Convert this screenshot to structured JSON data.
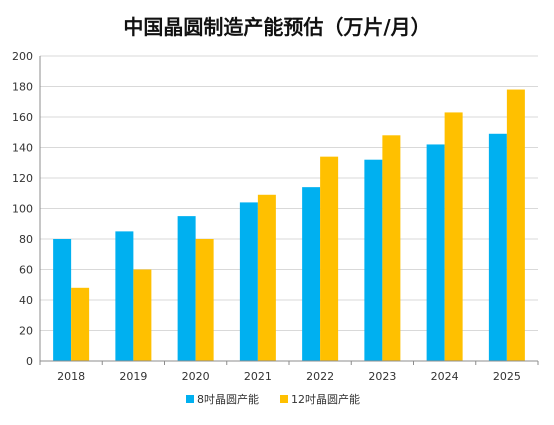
{
  "chart_data": {
    "type": "bar",
    "title": "中国晶圆制造产能预估（万片/月）",
    "xlabel": "",
    "ylabel": "",
    "categories": [
      "2018",
      "2019",
      "2020",
      "2021",
      "2022",
      "2023",
      "2024",
      "2025"
    ],
    "series": [
      {
        "name": "8吋晶圆产能",
        "color": "#00B0F0",
        "values": [
          80,
          85,
          95,
          104,
          114,
          132,
          142,
          149
        ]
      },
      {
        "name": "12吋晶圆产能",
        "color": "#FFC000",
        "values": [
          48,
          60,
          80,
          109,
          134,
          148,
          163,
          178
        ]
      }
    ],
    "ylim": [
      0,
      200
    ],
    "yticks": [
      "0",
      "20",
      "40",
      "60",
      "80",
      "100",
      "120",
      "140",
      "160",
      "180",
      "200"
    ],
    "grid": true,
    "legend": "bottom"
  }
}
